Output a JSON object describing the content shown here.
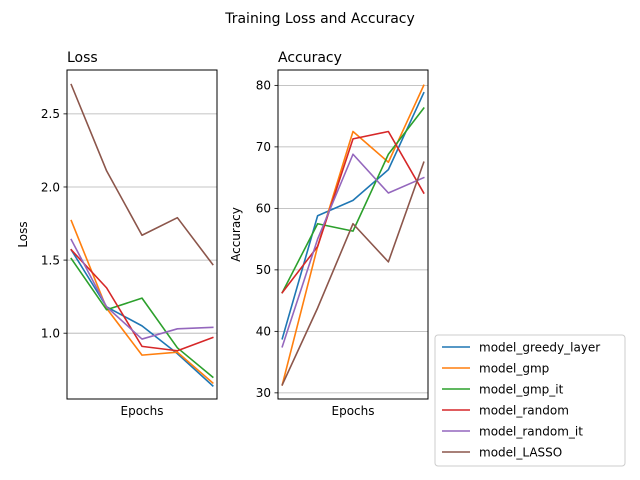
{
  "figure": {
    "suptitle": "Training Loss and Accuracy"
  },
  "chart_data": [
    {
      "type": "line",
      "title": "Loss",
      "xlabel": "Epochs",
      "ylabel": "Loss",
      "x": [
        1,
        2,
        3,
        4,
        5
      ],
      "xlim": [
        0.88,
        5.12
      ],
      "ylim": [
        0.55,
        2.8
      ],
      "yticks": [
        1.0,
        1.5,
        2.0,
        2.5
      ],
      "ytick_labels": [
        "1.0",
        "1.5",
        "2.0",
        "2.5"
      ],
      "grid": "y",
      "series": [
        {
          "name": "model_greedy_layer",
          "color": "#1f77b4",
          "values": [
            1.57,
            1.18,
            1.05,
            0.86,
            0.64
          ]
        },
        {
          "name": "model_gmp",
          "color": "#ff7f0e",
          "values": [
            1.77,
            1.17,
            0.85,
            0.87,
            0.66
          ]
        },
        {
          "name": "model_gmp_it",
          "color": "#2ca02c",
          "values": [
            1.51,
            1.16,
            1.24,
            0.9,
            0.7
          ]
        },
        {
          "name": "model_random",
          "color": "#d62728",
          "values": [
            1.57,
            1.31,
            0.91,
            0.88,
            0.97
          ]
        },
        {
          "name": "model_random_it",
          "color": "#9467bd",
          "values": [
            1.64,
            1.18,
            0.96,
            1.03,
            1.04
          ]
        },
        {
          "name": "model_LASSO",
          "color": "#8c564b",
          "values": [
            2.7,
            2.11,
            1.67,
            1.79,
            1.47
          ]
        }
      ]
    },
    {
      "type": "line",
      "title": "Accuracy",
      "xlabel": "Epochs",
      "ylabel": "Accuracy",
      "x": [
        1,
        2,
        3,
        4,
        5
      ],
      "xlim": [
        0.88,
        5.12
      ],
      "ylim": [
        29.0,
        82.5
      ],
      "yticks": [
        30,
        40,
        50,
        60,
        70,
        80
      ],
      "ytick_labels": [
        "30",
        "40",
        "50",
        "60",
        "70",
        "80"
      ],
      "grid": "y",
      "series": [
        {
          "name": "model_greedy_layer",
          "color": "#1f77b4",
          "values": [
            38.8,
            58.8,
            61.3,
            66.3,
            78.8
          ]
        },
        {
          "name": "model_gmp",
          "color": "#ff7f0e",
          "values": [
            31.3,
            53.8,
            72.5,
            67.5,
            80.0
          ]
        },
        {
          "name": "model_gmp_it",
          "color": "#2ca02c",
          "values": [
            46.3,
            57.5,
            56.3,
            68.8,
            76.3
          ]
        },
        {
          "name": "model_random",
          "color": "#d62728",
          "values": [
            46.3,
            53.8,
            71.3,
            72.5,
            62.5
          ]
        },
        {
          "name": "model_random_it",
          "color": "#9467bd",
          "values": [
            37.5,
            55.0,
            68.8,
            62.5,
            65.0
          ]
        },
        {
          "name": "model_LASSO",
          "color": "#8c564b",
          "values": [
            31.3,
            43.8,
            57.5,
            51.3,
            67.5
          ]
        }
      ]
    }
  ],
  "legend": {
    "placement": "lower-right",
    "entries": [
      "model_greedy_layer",
      "model_gmp",
      "model_gmp_it",
      "model_random",
      "model_random_it",
      "model_LASSO"
    ]
  }
}
